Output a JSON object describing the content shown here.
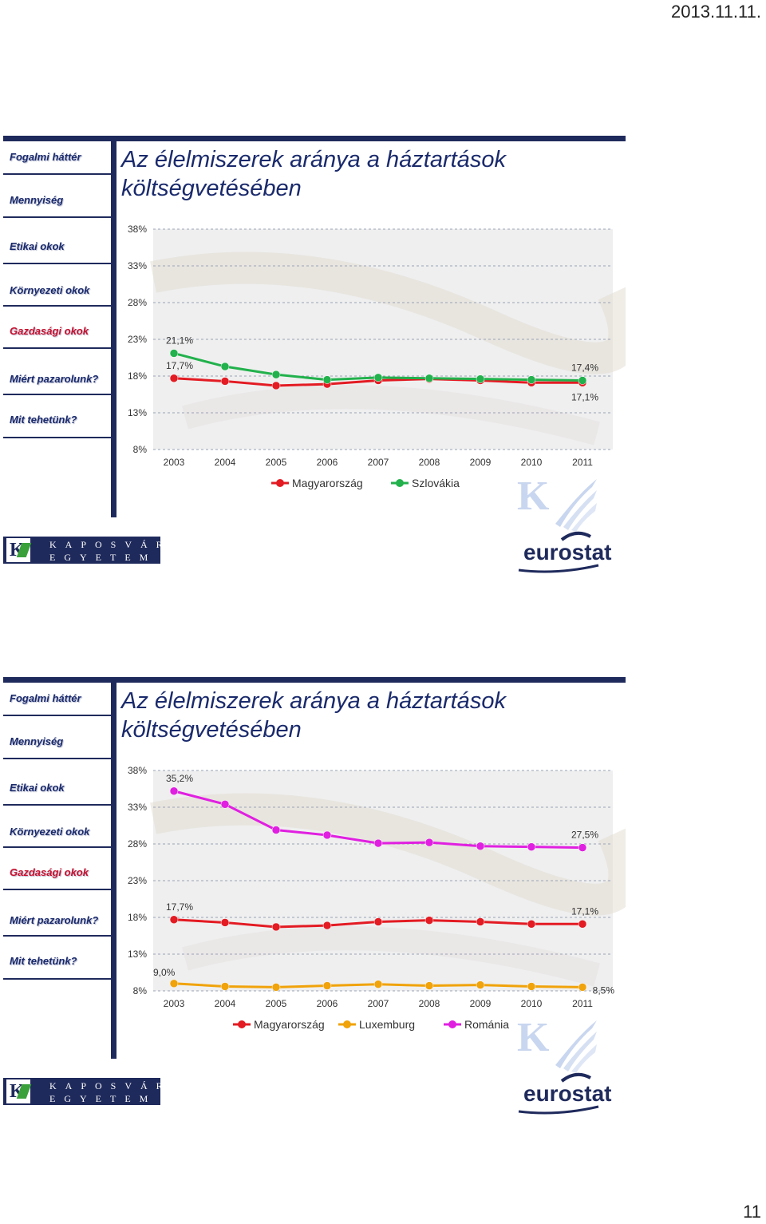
{
  "page": {
    "date": "2013.11.11.",
    "page_number": "11"
  },
  "colors": {
    "navy": "#1f2a5c",
    "active": "#c8102e",
    "hu": "#e31b23",
    "sk": "#22b14c",
    "lu": "#f0a30a",
    "ro": "#e020e0"
  },
  "slides": [
    {
      "nav": [
        "Fogalmi háttér",
        "Mennyiség",
        "Etikai okok",
        "Környezeti okok",
        "Gazdasági okok",
        "Miért  pazarolunk?",
        "Mit tehetünk?"
      ],
      "active_nav": 4,
      "title": "Az élelmiszerek aránya a háztartások költségvetésében",
      "logo": {
        "row1": "KAPOSVÁRI",
        "row2": "EGYETEM",
        "brand": "eurostat"
      }
    },
    {
      "nav": [
        "Fogalmi háttér",
        "Mennyiség",
        "Etikai okok",
        "Környezeti okok",
        "Gazdasági okok",
        "Miért  pazarolunk?",
        "Mit tehetünk?"
      ],
      "active_nav": 4,
      "title": "Az élelmiszerek aránya a háztartások költségvetésében",
      "logo": {
        "row1": "KAPOSVÁRI",
        "row2": "EGYETEM",
        "brand": "eurostat"
      }
    }
  ],
  "chart_data": [
    {
      "type": "line",
      "categories": [
        "2003",
        "2004",
        "2005",
        "2006",
        "2007",
        "2008",
        "2009",
        "2010",
        "2011"
      ],
      "y_ticks": [
        "38%",
        "33%",
        "28%",
        "23%",
        "18%",
        "13%",
        "8%"
      ],
      "ylim": [
        8,
        38
      ],
      "grid": true,
      "legend": "bottom",
      "series": [
        {
          "name": "Magyarország",
          "color": "#e31b23",
          "values": [
            17.7,
            17.3,
            16.7,
            16.9,
            17.4,
            17.6,
            17.4,
            17.1,
            17.1
          ]
        },
        {
          "name": "Szlovákia",
          "color": "#22b14c",
          "values": [
            21.1,
            19.3,
            18.2,
            17.5,
            17.8,
            17.7,
            17.6,
            17.5,
            17.4
          ]
        }
      ],
      "annotations": [
        {
          "text": "21,1%",
          "series": 1,
          "index": 0
        },
        {
          "text": "17,7%",
          "series": 0,
          "index": 0
        },
        {
          "text": "17,4%",
          "series": 1,
          "index": 8
        },
        {
          "text": "17,1%",
          "series": 0,
          "index": 8
        }
      ]
    },
    {
      "type": "line",
      "categories": [
        "2003",
        "2004",
        "2005",
        "2006",
        "2007",
        "2008",
        "2009",
        "2010",
        "2011"
      ],
      "y_ticks": [
        "38%",
        "33%",
        "28%",
        "23%",
        "18%",
        "13%",
        "8%"
      ],
      "ylim": [
        8,
        38
      ],
      "grid": true,
      "legend": "bottom",
      "series": [
        {
          "name": "Magyarország",
          "color": "#e31b23",
          "values": [
            17.7,
            17.3,
            16.7,
            16.9,
            17.4,
            17.6,
            17.4,
            17.1,
            17.1
          ]
        },
        {
          "name": "Luxemburg",
          "color": "#f0a30a",
          "values": [
            9.0,
            8.6,
            8.5,
            8.7,
            8.9,
            8.7,
            8.8,
            8.6,
            8.5
          ]
        },
        {
          "name": "Románia",
          "color": "#e020e0",
          "values": [
            35.2,
            33.4,
            29.9,
            29.2,
            28.1,
            28.2,
            27.7,
            27.6,
            27.5
          ]
        }
      ],
      "annotations": [
        {
          "text": "35,2%",
          "series": 2,
          "index": 0
        },
        {
          "text": "27,5%",
          "series": 2,
          "index": 8
        },
        {
          "text": "17,7%",
          "series": 0,
          "index": 0
        },
        {
          "text": "17,1%",
          "series": 0,
          "index": 8
        },
        {
          "text": "9,0%",
          "series": 1,
          "index": 0
        },
        {
          "text": "8,5%",
          "series": 1,
          "index": 8
        }
      ]
    }
  ]
}
